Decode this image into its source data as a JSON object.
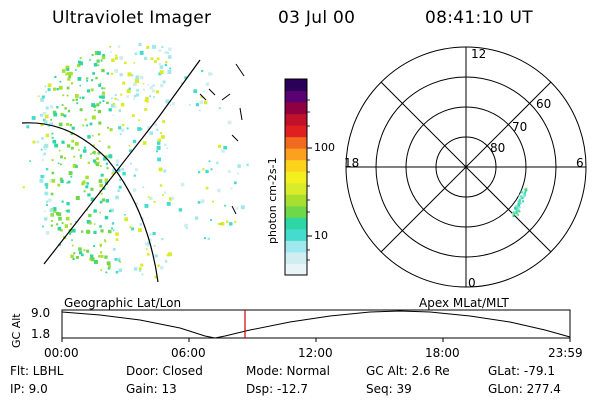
{
  "header": {
    "instrument": "Ultraviolet Imager",
    "date": "03 Jul 00",
    "time": "08:41:10 UT"
  },
  "colorbar": {
    "label": "photon cm-2s-1",
    "ticks": [
      "100",
      "10"
    ],
    "colors": [
      "#e8f4f8",
      "#d0eef2",
      "#9ee8ee",
      "#44dccc",
      "#2dd6a2",
      "#6ed84a",
      "#a8e030",
      "#d9ec2a",
      "#f4f020",
      "#fcd21a",
      "#fca020",
      "#f06a20",
      "#e02020",
      "#c0102a",
      "#900040",
      "#5a0070",
      "#2a0058"
    ]
  },
  "polar": {
    "mlt_labels": {
      "top": "12",
      "left": "18",
      "right": "6",
      "bottom": "0"
    },
    "lat_labels": [
      "60",
      "70",
      "80"
    ]
  },
  "timeline": {
    "left_title": "Geographic Lat/Lon",
    "right_title": "Apex MLat/MLT",
    "y_axis_label": "GC Alt",
    "y_ticks": [
      "9.0",
      "1.8"
    ],
    "x_ticks": [
      "00:00",
      "06:00",
      "12:00",
      "18:00",
      "23:59"
    ]
  },
  "info": {
    "flt": "Flt: LBHL",
    "ip": "IP:  9.0",
    "door": "Door: Closed",
    "gain": "Gain: 13",
    "mode": "Mode: Normal",
    "dsp": "Dsp:   -12.7",
    "gcalt": "GC Alt: 2.6 Re",
    "seq": "Seq: 39",
    "glat": "GLat:  -79.1",
    "glon": "GLon: 277.4"
  }
}
